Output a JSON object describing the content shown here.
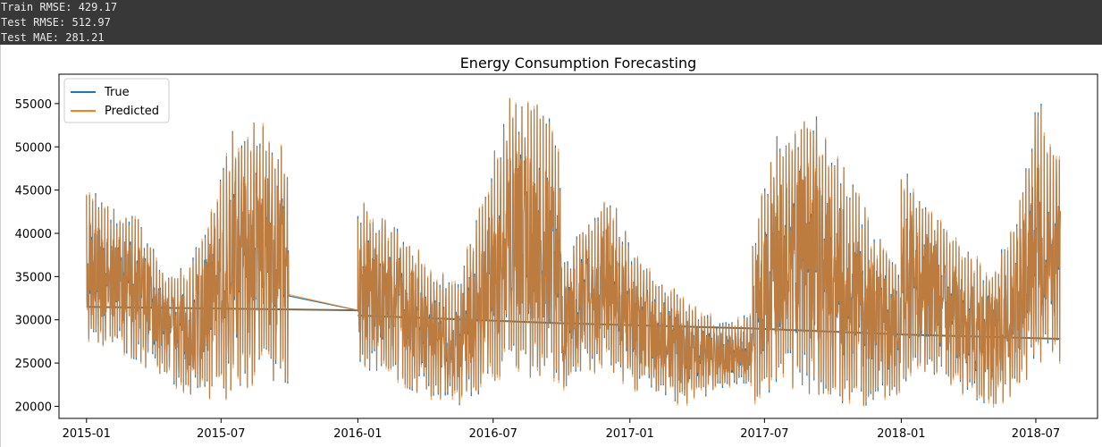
{
  "console": {
    "lines": [
      "Train RMSE: 429.17",
      "Test RMSE: 512.97",
      "Test MAE: 281.21"
    ]
  },
  "chart_data": {
    "type": "line",
    "title": "Energy Consumption Forecasting",
    "xlabel": "",
    "ylabel": "",
    "xlim": [
      "2014-11-25",
      "2018-09-22"
    ],
    "ylim": [
      18600,
      58400
    ],
    "x_ticks": [
      "2015-01",
      "2015-07",
      "2016-01",
      "2016-07",
      "2017-01",
      "2017-07",
      "2018-01",
      "2018-07"
    ],
    "y_ticks": [
      20000,
      25000,
      30000,
      35000,
      40000,
      45000,
      50000,
      55000
    ],
    "grid": false,
    "legend": "top-left",
    "series": [
      {
        "name": "True",
        "color": "#1f77b4",
        "segments": [
          {
            "start": "2015-01-01",
            "end": "2015-09-30",
            "lows": [
              26000,
              27000,
              25000,
              23500,
              21000,
              20000,
              21500,
              23000,
              22000
            ],
            "highs": [
              46500,
              43000,
              42500,
              36000,
              36000,
              45000,
              54000,
              53000,
              50000
            ],
            "trend": [
              31500,
              31100
            ]
          },
          {
            "start": "2016-01-01",
            "end": "2016-09-30",
            "lows": [
              24000,
              23500,
              22000,
              20500,
              20000,
              21500,
              24000,
              23000,
              21500
            ],
            "highs": [
              44000,
              42000,
              40000,
              35500,
              35000,
              45500,
              56000,
              55500,
              52000
            ],
            "trend": [
              30500,
              29600
            ]
          },
          {
            "start": "2016-10-01",
            "end": "2017-06-15",
            "lows": [
              21500,
              24000,
              23500,
              22000,
              21000,
              20000,
              21000,
              22000,
              22500
            ],
            "highs": [
              36000,
              42000,
              45500,
              38000,
              36000,
              33000,
              31000,
              30000,
              31000
            ],
            "trend": [
              29600,
              29000
            ]
          },
          {
            "start": "2017-06-15",
            "end": "2017-12-31",
            "lows": [
              20500,
              22000,
              21000,
              20000,
              19500,
              20000,
              21000
            ],
            "highs": [
              40000,
              52000,
              55000,
              53000,
              47000,
              40000,
              37000
            ],
            "trend": [
              29000,
              28300
            ]
          },
          {
            "start": "2018-01-01",
            "end": "2018-08-03",
            "lows": [
              22000,
              24000,
              22500,
              21000,
              20000,
              21000,
              24000,
              25000
            ],
            "highs": [
              49000,
              44500,
              41000,
              38000,
              36000,
              42000,
              56500,
              49000
            ],
            "trend": [
              28300,
              27800
            ]
          }
        ]
      },
      {
        "name": "Predicted",
        "color": "#ff7f0e"
      }
    ]
  }
}
